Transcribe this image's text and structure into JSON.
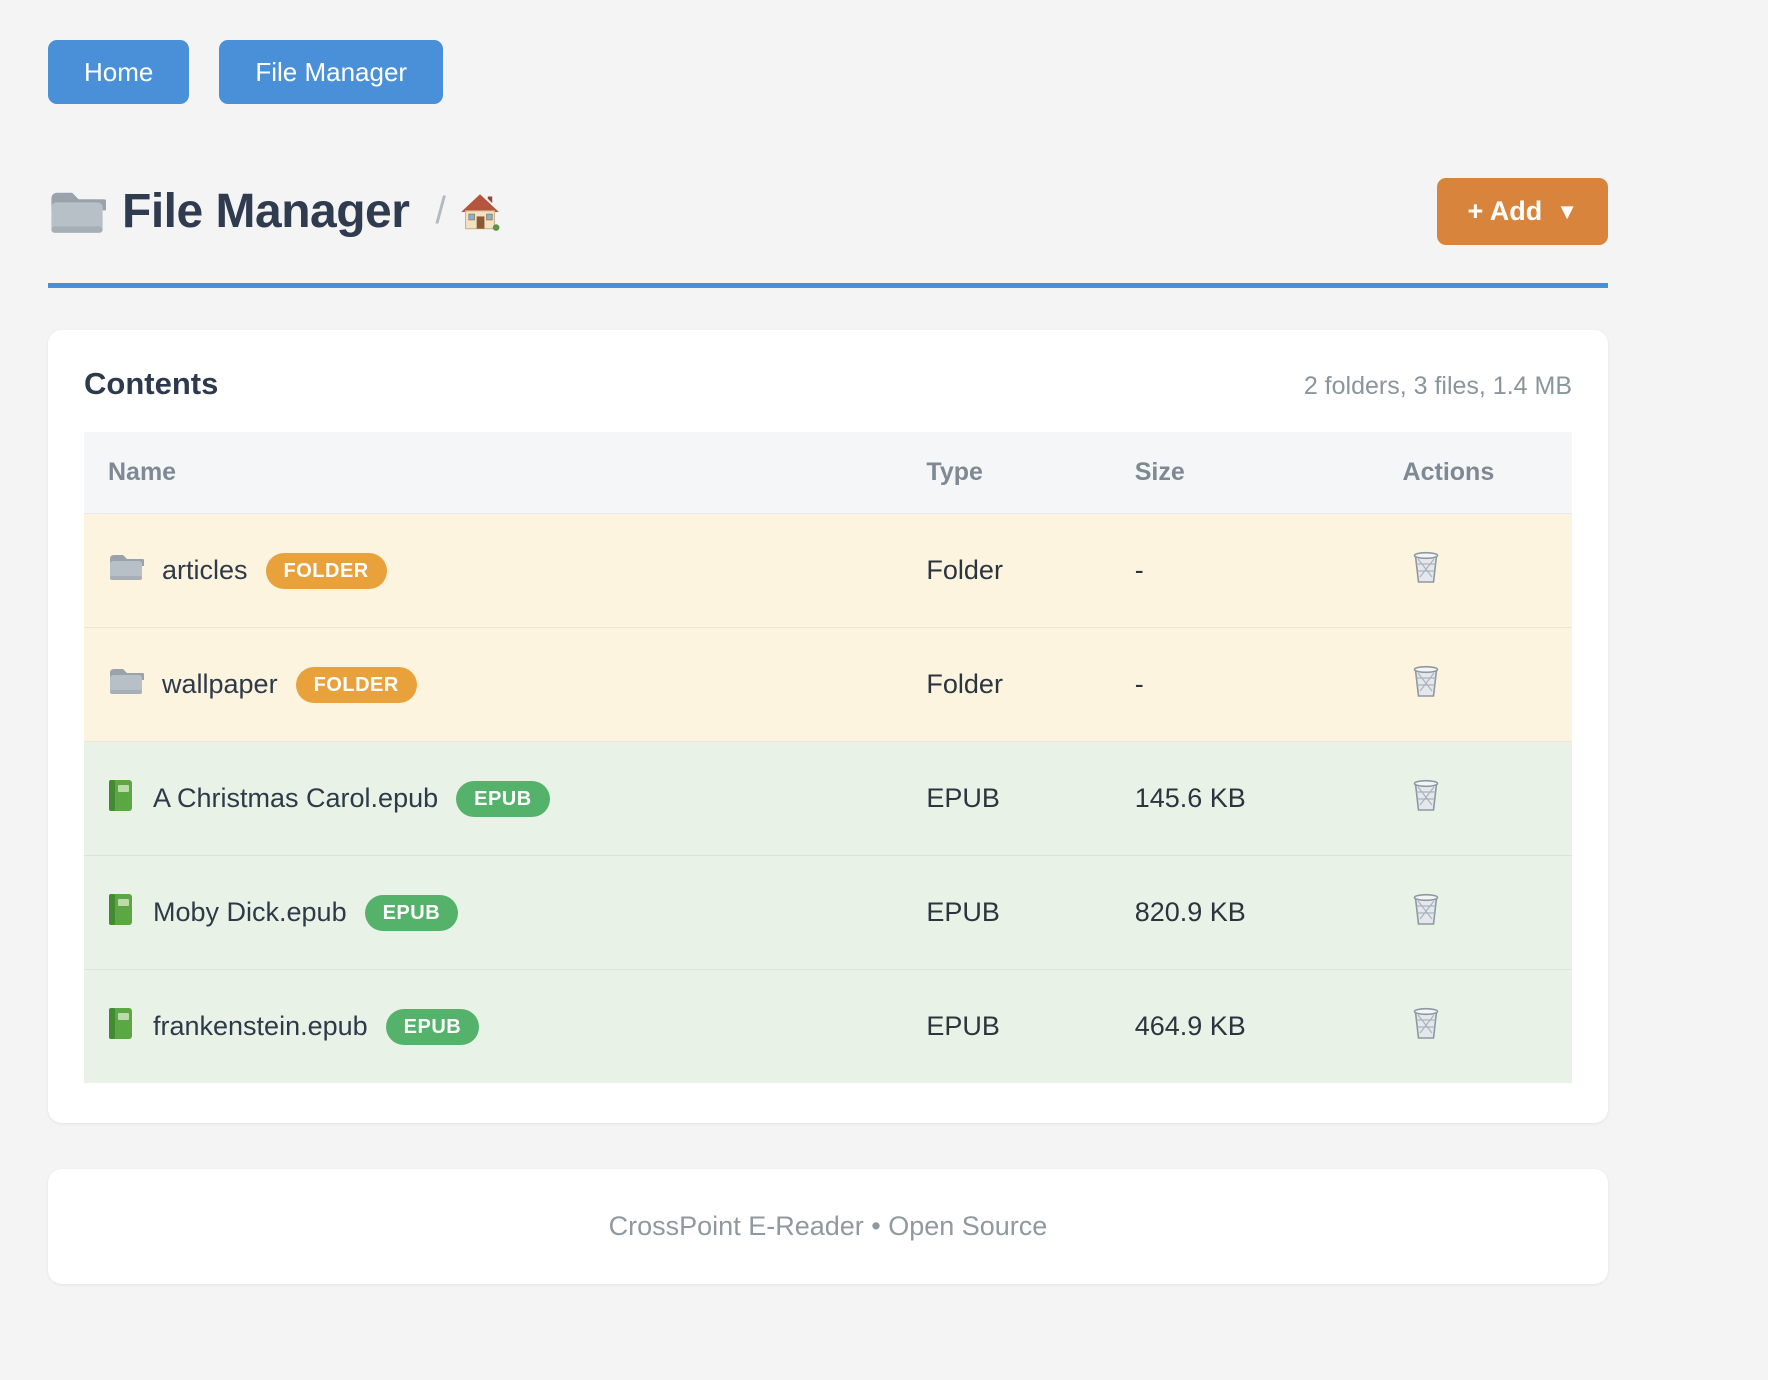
{
  "page": {
    "background": "#f4f4f5"
  },
  "nav": {
    "accent_color": "#4a90d9",
    "buttons": [
      {
        "label": "Home"
      },
      {
        "label": "File Manager"
      }
    ]
  },
  "header": {
    "title": "File Manager",
    "title_icon": "folder-icon",
    "breadcrumb_separator": "/",
    "breadcrumb_home_icon": "house-icon",
    "rule_color": "#4a90d9",
    "add_button": {
      "label": "+ Add",
      "caret": "▼",
      "color": "#d9843c"
    }
  },
  "contents": {
    "title": "Contents",
    "summary": "2 folders, 3 files, 1.4 MB",
    "table": {
      "columns": [
        "Name",
        "Type",
        "Size",
        "Actions"
      ],
      "rows": [
        {
          "name": "articles",
          "kind": "folder",
          "icon": "folder-icon",
          "badge": "FOLDER",
          "type": "Folder",
          "size": "-",
          "action_icon": "trash-icon"
        },
        {
          "name": "wallpaper",
          "kind": "folder",
          "icon": "folder-icon",
          "badge": "FOLDER",
          "type": "Folder",
          "size": "-",
          "action_icon": "trash-icon"
        },
        {
          "name": "A Christmas Carol.epub",
          "kind": "epub",
          "icon": "green-book-icon",
          "badge": "EPUB",
          "type": "EPUB",
          "size": "145.6 KB",
          "action_icon": "trash-icon"
        },
        {
          "name": "Moby Dick.epub",
          "kind": "epub",
          "icon": "green-book-icon",
          "badge": "EPUB",
          "type": "EPUB",
          "size": "820.9 KB",
          "action_icon": "trash-icon"
        },
        {
          "name": "frankenstein.epub",
          "kind": "epub",
          "icon": "green-book-icon",
          "badge": "EPUB",
          "type": "EPUB",
          "size": "464.9 KB",
          "action_icon": "trash-icon"
        }
      ]
    },
    "colors": {
      "folder_row_bg": "#fcf4df",
      "epub_row_bg": "#e8f2e7",
      "folder_badge": "#e9a23b",
      "epub_badge": "#55b26b"
    }
  },
  "footer": {
    "text": "CrossPoint E-Reader • Open Source"
  }
}
